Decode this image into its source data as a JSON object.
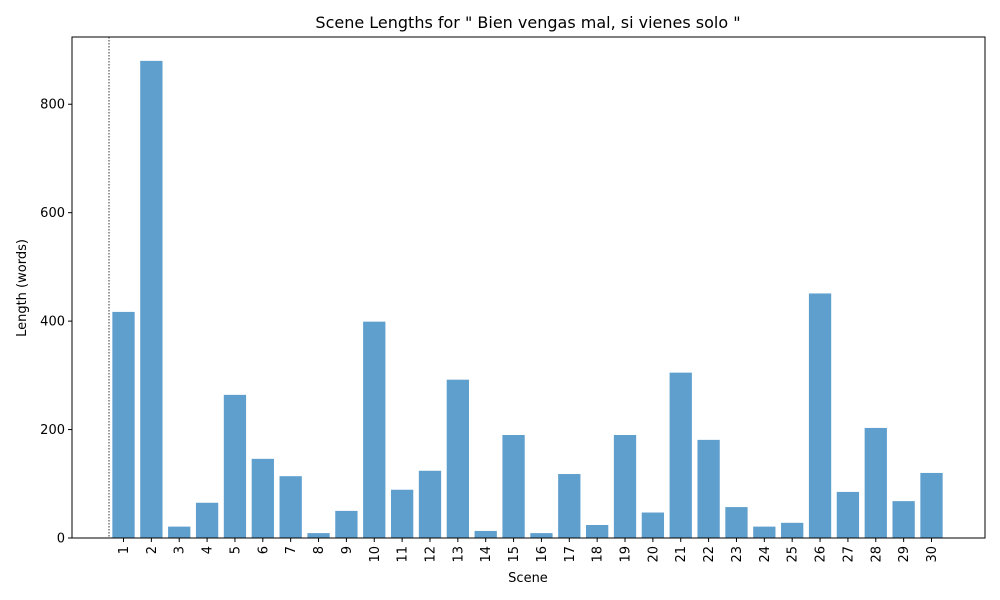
{
  "chart_data": {
    "type": "bar",
    "title": "Scene Lengths for \" Bien vengas mal, si vienes solo \"",
    "xlabel": "Scene",
    "ylabel": "Length (words)",
    "categories": [
      "1",
      "2",
      "3",
      "4",
      "5",
      "6",
      "7",
      "8",
      "9",
      "10",
      "11",
      "12",
      "13",
      "14",
      "15",
      "16",
      "17",
      "18",
      "19",
      "20",
      "21",
      "22",
      "23",
      "24",
      "25",
      "26",
      "27",
      "28",
      "29",
      "30"
    ],
    "values": [
      417,
      880,
      21,
      65,
      264,
      146,
      114,
      9,
      50,
      399,
      89,
      124,
      292,
      13,
      190,
      9,
      118,
      24,
      190,
      47,
      305,
      181,
      57,
      21,
      28,
      451,
      85,
      203,
      68,
      120
    ],
    "ylim": [
      0,
      924
    ],
    "yticks": [
      0,
      200,
      400,
      600,
      800
    ],
    "grid": false,
    "legend": "none",
    "bar_color": "#5f9fce",
    "marker_line": {
      "style": "dotted",
      "color": "#000000"
    }
  }
}
